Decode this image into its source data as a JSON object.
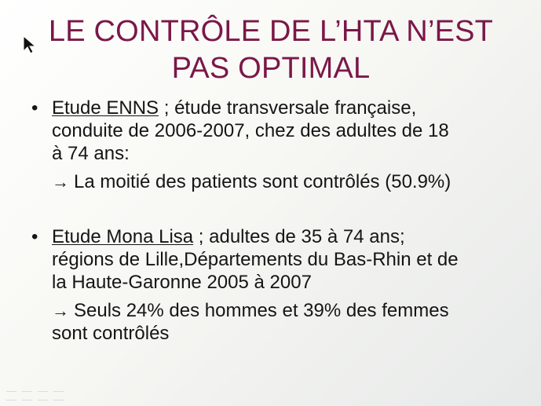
{
  "slide": {
    "title_lines": [
      "LE CONTRÔLE DE L’HTA N’EST",
      "PAS OPTIMAL"
    ],
    "bullets": [
      {
        "bullet": "•",
        "study": "Etude ENNS",
        "text_after_study": " ; étude transversale française,",
        "lines": [
          "conduite de 2006-2007, chez des adultes de 18",
          "à 74 ans:"
        ],
        "sub_arrow": "→",
        "sub_text": "La moitié des patients sont contrôlés (50.9%)"
      },
      {
        "bullet": "•",
        "study": "Etude Mona Lisa",
        "text_after_study": " ; adultes de 35 à 74 ans;",
        "lines": [
          "régions de Lille,Départements du Bas-Rhin et de",
          "la Haute-Garonne 2005 à 2007"
        ],
        "sub_arrow": "→",
        "sub_text": "Seuls 24% des hommes et 39% des femmes",
        "sub_text_2": "sont contrôlés"
      }
    ]
  },
  "icons": {
    "cursor": "mouse-pointer-icon",
    "footer": "presentation-controls-icon"
  },
  "colors": {
    "title": "#7a1848",
    "text": "#151515",
    "background": "#f7f7f3"
  }
}
